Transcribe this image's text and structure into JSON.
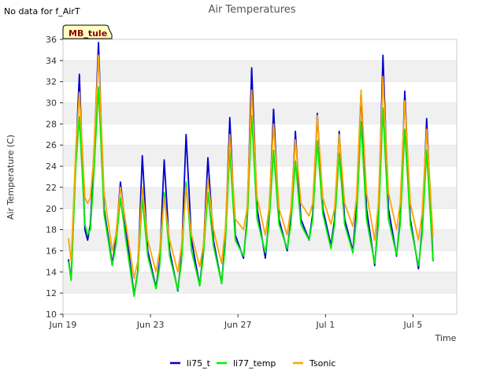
{
  "note": "No data for f_AirT",
  "badge": "MB_tule",
  "colors": {
    "li75_t": "#0000cc",
    "li77_temp": "#00ee00",
    "Tsonic": "#ffa500",
    "band": "#f0f0f0",
    "badge_bg": "#ffffc0"
  },
  "chart_data": {
    "type": "line",
    "title": "Air Temperatures",
    "xlabel": "Time",
    "ylabel": "Air Temperature (C)",
    "x_range": [
      "2024-06-19",
      "2024-07-07"
    ],
    "ylim": [
      10,
      36
    ],
    "y_ticks": [
      10,
      12,
      14,
      16,
      18,
      20,
      22,
      24,
      26,
      28,
      30,
      32,
      34,
      36
    ],
    "x_ticks": [
      {
        "date": "2024-06-19",
        "label": "Jun 19"
      },
      {
        "date": "2024-06-23",
        "label": "Jun 23"
      },
      {
        "date": "2024-06-27",
        "label": "Jun 27"
      },
      {
        "date": "2024-07-01",
        "label": "Jul 1"
      },
      {
        "date": "2024-07-05",
        "label": "Jul 5"
      }
    ],
    "grid": "horizontal alternating bands",
    "legend_position": "bottom",
    "series": [
      {
        "name": "li75_t",
        "color": "#0000cc",
        "points": [
          [
            "2024-06-19 06:00",
            15.2
          ],
          [
            "2024-06-19 09:00",
            13.3
          ],
          [
            "2024-06-19 14:00",
            25.0
          ],
          [
            "2024-06-19 18:00",
            32.7
          ],
          [
            "2024-06-20 00:00",
            18.0
          ],
          [
            "2024-06-20 03:00",
            17.0
          ],
          [
            "2024-06-20 06:00",
            18.5
          ],
          [
            "2024-06-20 09:00",
            23.0
          ],
          [
            "2024-06-20 15:00",
            35.7
          ],
          [
            "2024-06-20 21:00",
            20.0
          ],
          [
            "2024-06-21 06:00",
            14.8
          ],
          [
            "2024-06-21 10:00",
            17.0
          ],
          [
            "2024-06-21 15:00",
            22.5
          ],
          [
            "2024-06-21 21:00",
            18.0
          ],
          [
            "2024-06-22 06:00",
            11.8
          ],
          [
            "2024-06-22 10:00",
            14.0
          ],
          [
            "2024-06-22 15:00",
            25.0
          ],
          [
            "2024-06-22 21:00",
            16.0
          ],
          [
            "2024-06-23 06:00",
            12.5
          ],
          [
            "2024-06-23 10:00",
            15.0
          ],
          [
            "2024-06-23 15:00",
            24.6
          ],
          [
            "2024-06-23 21:00",
            16.0
          ],
          [
            "2024-06-24 06:00",
            12.2
          ],
          [
            "2024-06-24 10:00",
            15.5
          ],
          [
            "2024-06-24 15:00",
            27.0
          ],
          [
            "2024-06-24 21:00",
            17.0
          ],
          [
            "2024-06-25 06:00",
            12.7
          ],
          [
            "2024-06-25 10:00",
            16.0
          ],
          [
            "2024-06-25 15:00",
            24.8
          ],
          [
            "2024-06-25 21:00",
            17.0
          ],
          [
            "2024-06-26 06:00",
            12.9
          ],
          [
            "2024-06-26 10:00",
            17.0
          ],
          [
            "2024-06-26 15:00",
            28.6
          ],
          [
            "2024-06-26 21:00",
            17.5
          ],
          [
            "2024-06-27 06:00",
            15.3
          ],
          [
            "2024-06-27 10:00",
            19.0
          ],
          [
            "2024-06-27 15:00",
            33.3
          ],
          [
            "2024-06-27 21:00",
            20.0
          ],
          [
            "2024-06-28 06:00",
            15.3
          ],
          [
            "2024-06-28 10:00",
            19.0
          ],
          [
            "2024-06-28 15:00",
            29.4
          ],
          [
            "2024-06-28 21:00",
            19.0
          ],
          [
            "2024-06-29 06:00",
            16.0
          ],
          [
            "2024-06-29 10:00",
            19.0
          ],
          [
            "2024-06-29 15:00",
            27.3
          ],
          [
            "2024-06-29 21:00",
            19.0
          ],
          [
            "2024-06-30 06:00",
            17.0
          ],
          [
            "2024-06-30 10:00",
            19.5
          ],
          [
            "2024-06-30 15:00",
            29.0
          ],
          [
            "2024-06-30 21:00",
            20.0
          ],
          [
            "2024-07-01 06:00",
            16.5
          ],
          [
            "2024-07-01 10:00",
            19.0
          ],
          [
            "2024-07-01 15:00",
            27.3
          ],
          [
            "2024-07-01 21:00",
            19.0
          ],
          [
            "2024-07-02 06:00",
            16.0
          ],
          [
            "2024-07-02 10:00",
            20.0
          ],
          [
            "2024-07-02 15:00",
            31.0
          ],
          [
            "2024-07-02 21:00",
            20.0
          ],
          [
            "2024-07-03 06:00",
            14.6
          ],
          [
            "2024-07-03 10:00",
            19.0
          ],
          [
            "2024-07-03 15:00",
            34.5
          ],
          [
            "2024-07-03 21:00",
            20.0
          ],
          [
            "2024-07-04 06:00",
            15.5
          ],
          [
            "2024-07-04 10:00",
            19.0
          ],
          [
            "2024-07-04 15:00",
            31.1
          ],
          [
            "2024-07-04 21:00",
            19.0
          ],
          [
            "2024-07-05 06:00",
            14.3
          ],
          [
            "2024-07-05 10:00",
            18.0
          ],
          [
            "2024-07-05 15:00",
            28.5
          ],
          [
            "2024-07-05 22:00",
            15.0
          ]
        ]
      },
      {
        "name": "li77_temp",
        "color": "#00ee00",
        "points": [
          [
            "2024-06-19 06:00",
            15.0
          ],
          [
            "2024-06-19 09:00",
            13.2
          ],
          [
            "2024-06-19 14:00",
            24.0
          ],
          [
            "2024-06-19 18:00",
            28.7
          ],
          [
            "2024-06-20 00:00",
            18.5
          ],
          [
            "2024-06-20 03:00",
            17.5
          ],
          [
            "2024-06-20 06:00",
            18.0
          ],
          [
            "2024-06-20 09:00",
            22.0
          ],
          [
            "2024-06-20 15:00",
            31.5
          ],
          [
            "2024-06-20 21:00",
            19.5
          ],
          [
            "2024-06-21 06:00",
            14.6
          ],
          [
            "2024-06-21 10:00",
            16.5
          ],
          [
            "2024-06-21 15:00",
            21.0
          ],
          [
            "2024-06-21 21:00",
            17.0
          ],
          [
            "2024-06-22 06:00",
            11.7
          ],
          [
            "2024-06-22 10:00",
            14.0
          ],
          [
            "2024-06-22 15:00",
            21.0
          ],
          [
            "2024-06-22 21:00",
            15.5
          ],
          [
            "2024-06-23 06:00",
            12.4
          ],
          [
            "2024-06-23 10:00",
            14.5
          ],
          [
            "2024-06-23 15:00",
            21.5
          ],
          [
            "2024-06-23 21:00",
            15.5
          ],
          [
            "2024-06-24 06:00",
            12.3
          ],
          [
            "2024-06-24 10:00",
            15.0
          ],
          [
            "2024-06-24 15:00",
            22.5
          ],
          [
            "2024-06-24 21:00",
            16.0
          ],
          [
            "2024-06-25 06:00",
            12.7
          ],
          [
            "2024-06-25 10:00",
            15.5
          ],
          [
            "2024-06-25 15:00",
            21.5
          ],
          [
            "2024-06-25 21:00",
            16.5
          ],
          [
            "2024-06-26 06:00",
            12.9
          ],
          [
            "2024-06-26 10:00",
            16.5
          ],
          [
            "2024-06-26 15:00",
            25.5
          ],
          [
            "2024-06-26 21:00",
            17.0
          ],
          [
            "2024-06-27 06:00",
            15.5
          ],
          [
            "2024-06-27 10:00",
            18.5
          ],
          [
            "2024-06-27 15:00",
            28.8
          ],
          [
            "2024-06-27 21:00",
            19.0
          ],
          [
            "2024-06-28 06:00",
            15.8
          ],
          [
            "2024-06-28 10:00",
            18.5
          ],
          [
            "2024-06-28 15:00",
            25.5
          ],
          [
            "2024-06-28 21:00",
            18.5
          ],
          [
            "2024-06-29 06:00",
            16.2
          ],
          [
            "2024-06-29 10:00",
            18.5
          ],
          [
            "2024-06-29 15:00",
            24.5
          ],
          [
            "2024-06-29 21:00",
            18.5
          ],
          [
            "2024-06-30 06:00",
            17.0
          ],
          [
            "2024-06-30 10:00",
            19.0
          ],
          [
            "2024-06-30 15:00",
            26.4
          ],
          [
            "2024-06-30 21:00",
            19.5
          ],
          [
            "2024-07-01 06:00",
            16.2
          ],
          [
            "2024-07-01 10:00",
            18.5
          ],
          [
            "2024-07-01 15:00",
            25.2
          ],
          [
            "2024-07-01 21:00",
            18.5
          ],
          [
            "2024-07-02 06:00",
            15.8
          ],
          [
            "2024-07-02 10:00",
            19.0
          ],
          [
            "2024-07-02 15:00",
            28.2
          ],
          [
            "2024-07-02 21:00",
            19.0
          ],
          [
            "2024-07-03 06:00",
            14.8
          ],
          [
            "2024-07-03 10:00",
            18.5
          ],
          [
            "2024-07-03 15:00",
            29.5
          ],
          [
            "2024-07-03 21:00",
            19.0
          ],
          [
            "2024-07-04 06:00",
            15.6
          ],
          [
            "2024-07-04 10:00",
            18.5
          ],
          [
            "2024-07-04 15:00",
            27.5
          ],
          [
            "2024-07-04 21:00",
            18.5
          ],
          [
            "2024-07-05 06:00",
            14.6
          ],
          [
            "2024-07-05 10:00",
            17.5
          ],
          [
            "2024-07-05 15:00",
            25.5
          ],
          [
            "2024-07-05 22:00",
            15.0
          ]
        ]
      },
      {
        "name": "Tsonic",
        "color": "#ffa500",
        "points": [
          [
            "2024-06-19 06:00",
            17.2
          ],
          [
            "2024-06-19 09:00",
            15.0
          ],
          [
            "2024-06-19 14:00",
            25.5
          ],
          [
            "2024-06-19 18:00",
            31.0
          ],
          [
            "2024-06-20 00:00",
            21.0
          ],
          [
            "2024-06-20 03:00",
            20.5
          ],
          [
            "2024-06-20 06:00",
            21.0
          ],
          [
            "2024-06-20 09:00",
            24.0
          ],
          [
            "2024-06-20 15:00",
            34.5
          ],
          [
            "2024-06-20 21:00",
            21.5
          ],
          [
            "2024-06-21 06:00",
            16.0
          ],
          [
            "2024-06-21 10:00",
            17.5
          ],
          [
            "2024-06-21 15:00",
            22.0
          ],
          [
            "2024-06-21 21:00",
            18.5
          ],
          [
            "2024-06-22 06:00",
            13.4
          ],
          [
            "2024-06-22 10:00",
            15.0
          ],
          [
            "2024-06-22 15:00",
            22.0
          ],
          [
            "2024-06-22 21:00",
            17.0
          ],
          [
            "2024-06-23 06:00",
            14.0
          ],
          [
            "2024-06-23 10:00",
            16.0
          ],
          [
            "2024-06-23 15:00",
            21.0
          ],
          [
            "2024-06-23 21:00",
            17.0
          ],
          [
            "2024-06-24 06:00",
            14.0
          ],
          [
            "2024-06-24 10:00",
            16.5
          ],
          [
            "2024-06-24 15:00",
            22.0
          ],
          [
            "2024-06-24 21:00",
            17.5
          ],
          [
            "2024-06-25 06:00",
            14.5
          ],
          [
            "2024-06-25 10:00",
            16.5
          ],
          [
            "2024-06-25 15:00",
            22.8
          ],
          [
            "2024-06-25 21:00",
            18.0
          ],
          [
            "2024-06-26 06:00",
            14.8
          ],
          [
            "2024-06-26 10:00",
            18.0
          ],
          [
            "2024-06-26 15:00",
            27.0
          ],
          [
            "2024-06-26 21:00",
            19.0
          ],
          [
            "2024-06-27 06:00",
            18.0
          ],
          [
            "2024-06-27 10:00",
            20.0
          ],
          [
            "2024-06-27 15:00",
            31.2
          ],
          [
            "2024-06-27 21:00",
            21.0
          ],
          [
            "2024-06-28 06:00",
            17.5
          ],
          [
            "2024-06-28 10:00",
            20.0
          ],
          [
            "2024-06-28 15:00",
            28.0
          ],
          [
            "2024-06-28 21:00",
            20.0
          ],
          [
            "2024-06-29 06:00",
            17.5
          ],
          [
            "2024-06-29 10:00",
            20.0
          ],
          [
            "2024-06-29 15:00",
            26.5
          ],
          [
            "2024-06-29 21:00",
            20.5
          ],
          [
            "2024-06-30 06:00",
            19.3
          ],
          [
            "2024-06-30 10:00",
            20.5
          ],
          [
            "2024-06-30 15:00",
            28.8
          ],
          [
            "2024-06-30 21:00",
            21.0
          ],
          [
            "2024-07-01 06:00",
            18.5
          ],
          [
            "2024-07-01 10:00",
            20.0
          ],
          [
            "2024-07-01 15:00",
            27.0
          ],
          [
            "2024-07-01 21:00",
            20.5
          ],
          [
            "2024-07-02 06:00",
            18.3
          ],
          [
            "2024-07-02 10:00",
            21.0
          ],
          [
            "2024-07-02 15:00",
            31.2
          ],
          [
            "2024-07-02 21:00",
            21.5
          ],
          [
            "2024-07-03 06:00",
            17.0
          ],
          [
            "2024-07-03 10:00",
            20.5
          ],
          [
            "2024-07-03 15:00",
            32.5
          ],
          [
            "2024-07-03 21:00",
            21.5
          ],
          [
            "2024-07-04 06:00",
            18.0
          ],
          [
            "2024-07-04 10:00",
            20.5
          ],
          [
            "2024-07-04 15:00",
            30.2
          ],
          [
            "2024-07-04 21:00",
            20.5
          ],
          [
            "2024-07-05 06:00",
            17.0
          ],
          [
            "2024-07-05 10:00",
            19.5
          ],
          [
            "2024-07-05 15:00",
            27.5
          ],
          [
            "2024-07-05 22:00",
            17.3
          ]
        ]
      }
    ]
  }
}
